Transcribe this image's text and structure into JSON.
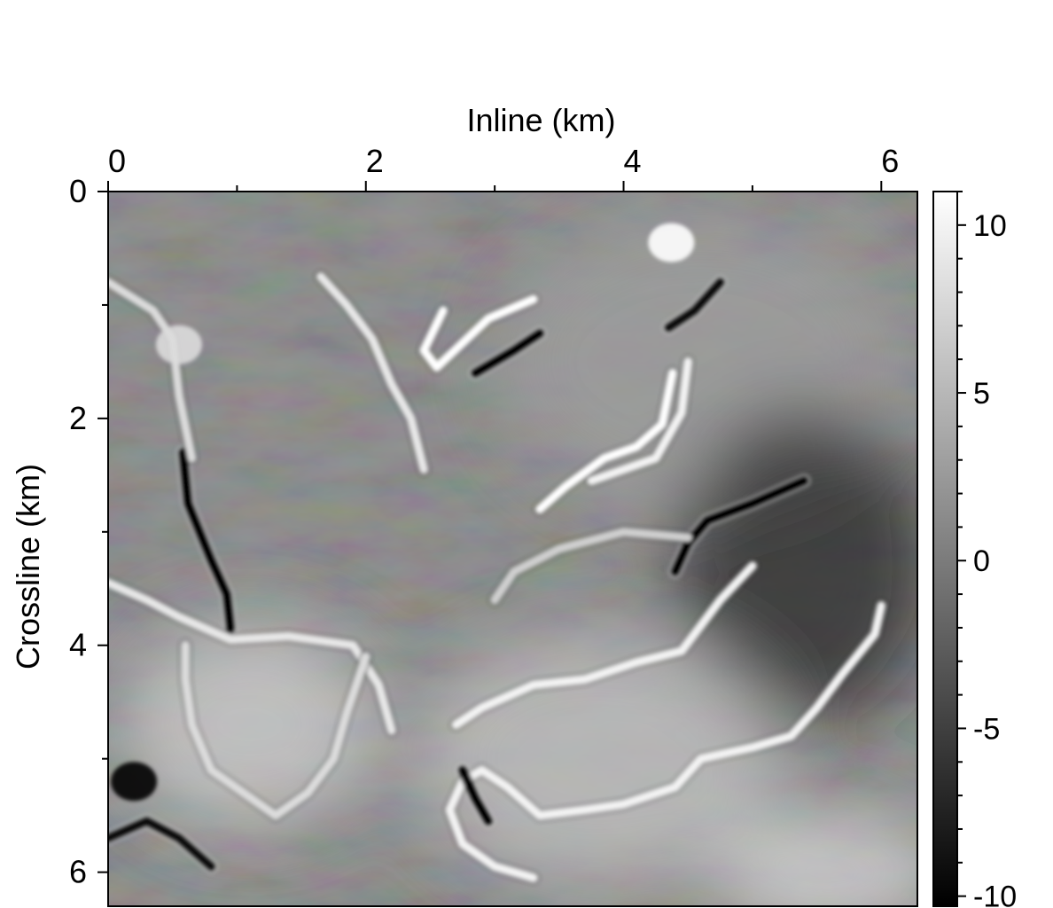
{
  "chart_data": {
    "type": "heatmap",
    "title": "",
    "xlabel": "Inline (km)",
    "ylabel": "Crossline (km)",
    "x_axis_position": "top",
    "y_axis_inverted": true,
    "xlim": [
      0,
      6.28
    ],
    "ylim": [
      0,
      6.3
    ],
    "x_ticks": [
      0,
      2,
      4,
      6
    ],
    "x_minor_ticks": [
      1,
      3,
      5
    ],
    "x_tick_labels": [
      "0",
      "2",
      "4",
      "6"
    ],
    "y_ticks": [
      0,
      2,
      4,
      6
    ],
    "y_minor_ticks": [
      1,
      3,
      5
    ],
    "y_tick_labels": [
      "0",
      "2",
      "4",
      "6"
    ],
    "colormap": "grayscale",
    "colorbar": {
      "placement": "right",
      "range": [
        -10.3,
        11
      ],
      "ticks": [
        10,
        5,
        0,
        -5,
        -10
      ],
      "tick_labels": [
        "10",
        "5",
        "0",
        "-5",
        "-10"
      ]
    },
    "grid": false,
    "features": [
      {
        "kind": "bright-channel",
        "value": 11,
        "points": [
          [
            2.6,
            1.05
          ],
          [
            2.45,
            1.4
          ],
          [
            2.55,
            1.55
          ],
          [
            2.95,
            1.12
          ],
          [
            3.3,
            0.95
          ]
        ]
      },
      {
        "kind": "dark-channel",
        "value": -10,
        "points": [
          [
            2.85,
            1.6
          ],
          [
            3.15,
            1.4
          ],
          [
            3.35,
            1.25
          ]
        ]
      },
      {
        "kind": "bright-channel",
        "value": 11,
        "points": [
          [
            4.38,
            1.6
          ],
          [
            4.3,
            2.05
          ],
          [
            4.1,
            2.25
          ],
          [
            3.85,
            2.35
          ],
          [
            3.55,
            2.6
          ],
          [
            3.35,
            2.8
          ]
        ]
      },
      {
        "kind": "bright-channel",
        "value": 10,
        "points": [
          [
            4.5,
            1.5
          ],
          [
            4.45,
            1.95
          ],
          [
            4.25,
            2.35
          ],
          [
            3.75,
            2.55
          ]
        ]
      },
      {
        "kind": "dark-channel",
        "value": -10,
        "points": [
          [
            5.4,
            2.55
          ],
          [
            5.0,
            2.75
          ],
          [
            4.65,
            2.9
          ],
          [
            4.5,
            3.1
          ],
          [
            4.4,
            3.35
          ]
        ]
      },
      {
        "kind": "dark-channel",
        "value": -9,
        "points": [
          [
            4.35,
            1.2
          ],
          [
            4.55,
            1.05
          ],
          [
            4.75,
            0.8
          ]
        ]
      },
      {
        "kind": "dark-channel",
        "value": -10,
        "points": [
          [
            0.58,
            2.3
          ],
          [
            0.62,
            2.75
          ],
          [
            0.8,
            3.25
          ],
          [
            0.92,
            3.55
          ],
          [
            0.95,
            3.85
          ]
        ]
      },
      {
        "kind": "bright-channel",
        "value": 8,
        "points": [
          [
            0.0,
            0.8
          ],
          [
            0.35,
            1.05
          ],
          [
            0.5,
            1.3
          ],
          [
            0.55,
            1.8
          ],
          [
            0.65,
            2.35
          ]
        ]
      },
      {
        "kind": "bright-channel",
        "value": 10,
        "points": [
          [
            2.7,
            4.7
          ],
          [
            2.9,
            4.55
          ],
          [
            3.3,
            4.35
          ],
          [
            3.7,
            4.3
          ],
          [
            4.1,
            4.15
          ],
          [
            4.45,
            4.05
          ],
          [
            4.75,
            3.6
          ],
          [
            5.0,
            3.3
          ]
        ]
      },
      {
        "kind": "bright-channel",
        "value": 10,
        "points": [
          [
            6.0,
            3.65
          ],
          [
            5.95,
            3.9
          ],
          [
            5.7,
            4.25
          ],
          [
            5.5,
            4.55
          ],
          [
            5.3,
            4.8
          ],
          [
            5.0,
            4.9
          ],
          [
            4.6,
            5.0
          ],
          [
            4.4,
            5.25
          ],
          [
            4.0,
            5.4
          ],
          [
            3.7,
            5.45
          ],
          [
            3.35,
            5.5
          ],
          [
            3.1,
            5.25
          ],
          [
            2.9,
            5.1
          ],
          [
            2.75,
            5.2
          ],
          [
            2.65,
            5.45
          ],
          [
            2.75,
            5.75
          ],
          [
            3.0,
            5.95
          ],
          [
            3.3,
            6.05
          ]
        ]
      },
      {
        "kind": "bright-channel",
        "value": 9,
        "points": [
          [
            0.0,
            3.45
          ],
          [
            0.3,
            3.6
          ],
          [
            0.55,
            3.75
          ],
          [
            0.95,
            3.95
          ],
          [
            1.4,
            3.92
          ],
          [
            1.9,
            4.0
          ],
          [
            2.1,
            4.35
          ],
          [
            2.2,
            4.75
          ]
        ]
      },
      {
        "kind": "bright-channel",
        "value": 8,
        "points": [
          [
            0.6,
            4.0
          ],
          [
            0.6,
            4.3
          ],
          [
            0.65,
            4.7
          ],
          [
            0.8,
            5.1
          ],
          [
            1.3,
            5.5
          ],
          [
            1.55,
            5.3
          ],
          [
            1.75,
            5.0
          ],
          [
            1.85,
            4.6
          ],
          [
            2.0,
            4.1
          ]
        ]
      },
      {
        "kind": "dark-channel",
        "value": -9,
        "points": [
          [
            0.0,
            5.7
          ],
          [
            0.3,
            5.55
          ],
          [
            0.55,
            5.7
          ],
          [
            0.8,
            5.95
          ]
        ]
      },
      {
        "kind": "dark-channel",
        "value": -10,
        "points": [
          [
            2.75,
            5.1
          ],
          [
            2.85,
            5.35
          ],
          [
            2.95,
            5.55
          ]
        ]
      },
      {
        "kind": "bright-channel",
        "value": 9,
        "points": [
          [
            2.45,
            2.45
          ],
          [
            2.35,
            2.0
          ],
          [
            2.2,
            1.7
          ],
          [
            2.05,
            1.3
          ],
          [
            1.85,
            1.0
          ],
          [
            1.65,
            0.75
          ]
        ]
      },
      {
        "kind": "bright-channel",
        "value": 7,
        "points": [
          [
            3.0,
            3.6
          ],
          [
            3.15,
            3.35
          ],
          [
            3.5,
            3.15
          ],
          [
            4.0,
            3.0
          ],
          [
            4.5,
            3.05
          ]
        ]
      },
      {
        "kind": "bright-blob",
        "value": 11,
        "points": [
          [
            4.37,
            0.45
          ]
        ]
      },
      {
        "kind": "bright-blob",
        "value": 8,
        "points": [
          [
            0.55,
            1.35
          ]
        ]
      },
      {
        "kind": "dark-blob",
        "value": -10,
        "points": [
          [
            0.2,
            5.2
          ]
        ]
      }
    ],
    "regional_trends": [
      {
        "region": "upper-right",
        "value": 3
      },
      {
        "region": "right-middle",
        "value": -7
      },
      {
        "region": "lower-center",
        "value": 6
      },
      {
        "region": "lower-left-center",
        "value": 7
      },
      {
        "region": "bottom-right",
        "value": 8
      }
    ]
  }
}
